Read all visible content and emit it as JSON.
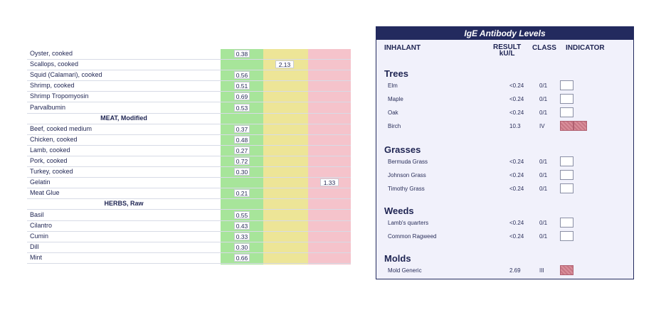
{
  "food_table": {
    "rows": [
      {
        "type": "item",
        "name": "Oyster, cooked",
        "value": "0.38",
        "zone": "green"
      },
      {
        "type": "item",
        "name": "Scallops, cooked",
        "value": "2.13",
        "zone": "yellow"
      },
      {
        "type": "item",
        "name": "Squid (Calamari), cooked",
        "value": "0.56",
        "zone": "green"
      },
      {
        "type": "item",
        "name": "Shrimp, cooked",
        "value": "0.51",
        "zone": "green"
      },
      {
        "type": "item",
        "name": "Shrimp Tropomyosin",
        "value": "0.69",
        "zone": "green"
      },
      {
        "type": "item",
        "name": "Parvalbumin",
        "value": "0.53",
        "zone": "green"
      },
      {
        "type": "section",
        "name": "MEAT, Modified"
      },
      {
        "type": "item",
        "name": "Beef, cooked medium",
        "value": "0.37",
        "zone": "green"
      },
      {
        "type": "item",
        "name": "Chicken, cooked",
        "value": "0.48",
        "zone": "green"
      },
      {
        "type": "item",
        "name": "Lamb, cooked",
        "value": "0.27",
        "zone": "green"
      },
      {
        "type": "item",
        "name": "Pork, cooked",
        "value": "0.72",
        "zone": "green"
      },
      {
        "type": "item",
        "name": "Turkey, cooked",
        "value": "0.30",
        "zone": "green"
      },
      {
        "type": "item",
        "name": "Gelatin",
        "value": "1.33",
        "zone": "pink"
      },
      {
        "type": "item",
        "name": "Meat Glue",
        "value": "0.21",
        "zone": "green"
      },
      {
        "type": "section",
        "name": "HERBS, Raw"
      },
      {
        "type": "item",
        "name": "Basil",
        "value": "0.55",
        "zone": "green"
      },
      {
        "type": "item",
        "name": "Cilantro",
        "value": "0.43",
        "zone": "green"
      },
      {
        "type": "item",
        "name": "Cumin",
        "value": "0.33",
        "zone": "green"
      },
      {
        "type": "item",
        "name": "Dill",
        "value": "0.30",
        "zone": "green"
      },
      {
        "type": "item",
        "name": "Mint",
        "value": "0.66",
        "zone": "green"
      }
    ]
  },
  "ige_panel": {
    "title": "IgE Antibody Levels",
    "headers": {
      "inhalant": "INHALANT",
      "result_line1": "RESULT",
      "result_line2": "kU/L",
      "class": "CLASS",
      "indicator": "INDICATOR"
    },
    "groups": [
      {
        "name": "Trees",
        "items": [
          {
            "name": "Elm",
            "result": "<0.24",
            "class": "0/1",
            "indicator_filled": 0
          },
          {
            "name": "Maple",
            "result": "<0.24",
            "class": "0/1",
            "indicator_filled": 0
          },
          {
            "name": "Oak",
            "result": "<0.24",
            "class": "0/1",
            "indicator_filled": 0
          },
          {
            "name": "Birch",
            "result": "10.3",
            "class": "IV",
            "indicator_filled": 2
          }
        ]
      },
      {
        "name": "Grasses",
        "items": [
          {
            "name": "Bermuda Grass",
            "result": "<0.24",
            "class": "0/1",
            "indicator_filled": 0
          },
          {
            "name": "Johnson Grass",
            "result": "<0.24",
            "class": "0/1",
            "indicator_filled": 0
          },
          {
            "name": "Timothy Grass",
            "result": "<0.24",
            "class": "0/1",
            "indicator_filled": 0
          }
        ]
      },
      {
        "name": "Weeds",
        "items": [
          {
            "name": "Lamb's quarters",
            "result": "<0.24",
            "class": "0/1",
            "indicator_filled": 0
          },
          {
            "name": "Common Ragweed",
            "result": "<0.24",
            "class": "0/1",
            "indicator_filled": 0
          }
        ]
      },
      {
        "name": "Molds",
        "items": [
          {
            "name": "Mold Generic",
            "result": "2.69",
            "class": "III",
            "indicator_filled": 1
          }
        ]
      }
    ]
  },
  "colors": {
    "green_zone": "#a7e59a",
    "yellow_zone": "#ede597",
    "pink_zone": "#f5c3cb",
    "header_navy": "#232a5e",
    "indicator_fill": "#d98e9a"
  }
}
